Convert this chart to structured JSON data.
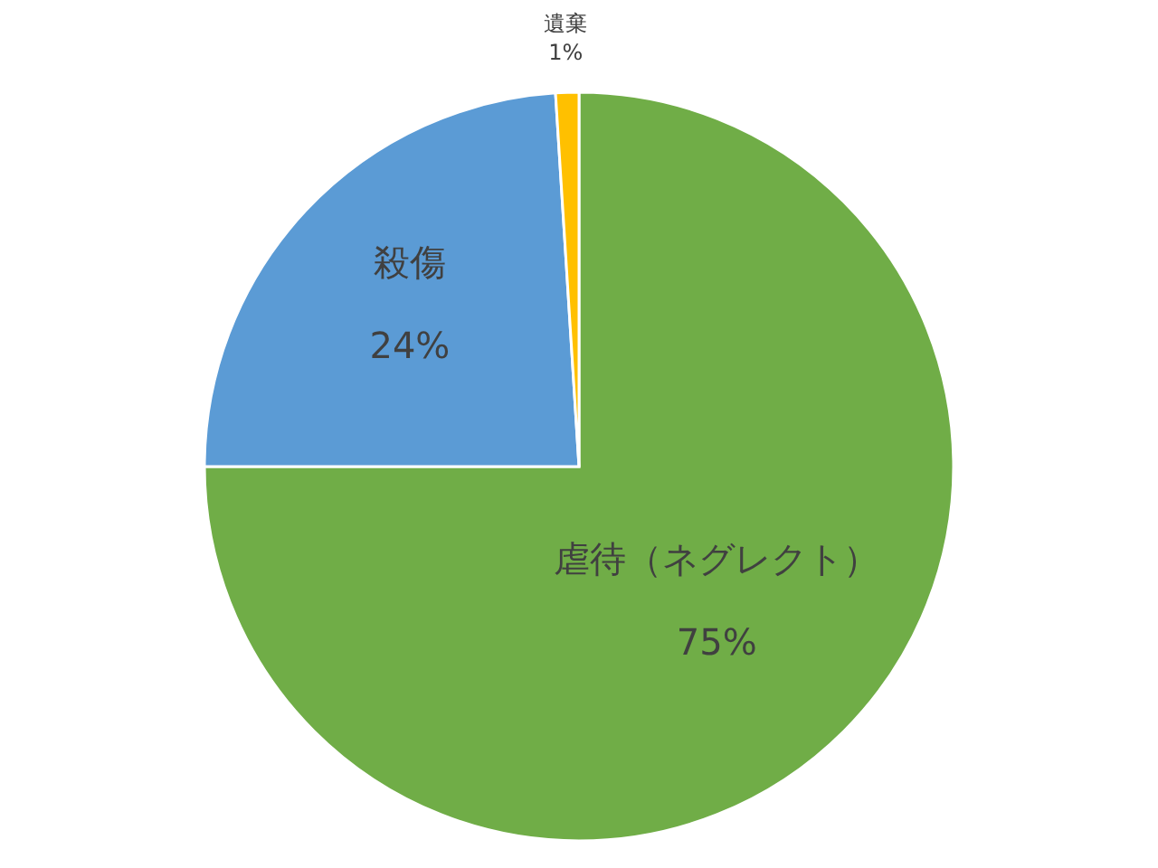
{
  "chart_data": {
    "type": "pie",
    "categories": [
      "虐待（ネグレクト）",
      "殺傷",
      "遺棄"
    ],
    "values": [
      75,
      24,
      1
    ],
    "colors": [
      "#70ad47",
      "#5b9bd5",
      "#ffc000"
    ],
    "value_labels": [
      "75%",
      "24%",
      "1%"
    ]
  }
}
